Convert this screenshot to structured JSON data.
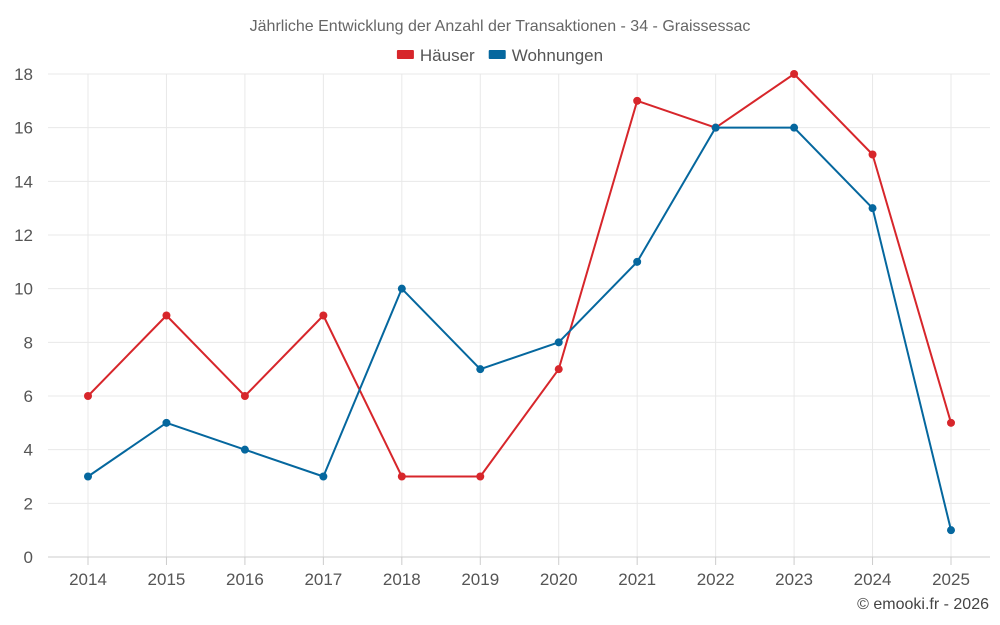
{
  "chart_data": {
    "type": "line",
    "title": "Jährliche Entwicklung der Anzahl der Transaktionen - 34 - Graissessac",
    "xlabel": "",
    "ylabel": "",
    "categories": [
      "2014",
      "2015",
      "2016",
      "2017",
      "2018",
      "2019",
      "2020",
      "2021",
      "2022",
      "2023",
      "2024",
      "2025"
    ],
    "ylim": [
      0,
      18
    ],
    "yticks": [
      0,
      2,
      4,
      6,
      8,
      10,
      12,
      14,
      16,
      18
    ],
    "grid": true,
    "legend_position": "top-center",
    "series": [
      {
        "name": "Häuser",
        "color": "#d7262b",
        "values": [
          6,
          9,
          6,
          9,
          3,
          3,
          7,
          17,
          16,
          18,
          15,
          5
        ]
      },
      {
        "name": "Wohnungen",
        "color": "#05679e",
        "values": [
          3,
          5,
          4,
          3,
          10,
          7,
          8,
          11,
          16,
          16,
          13,
          1
        ]
      }
    ]
  },
  "credit": "© emooki.fr - 2026"
}
